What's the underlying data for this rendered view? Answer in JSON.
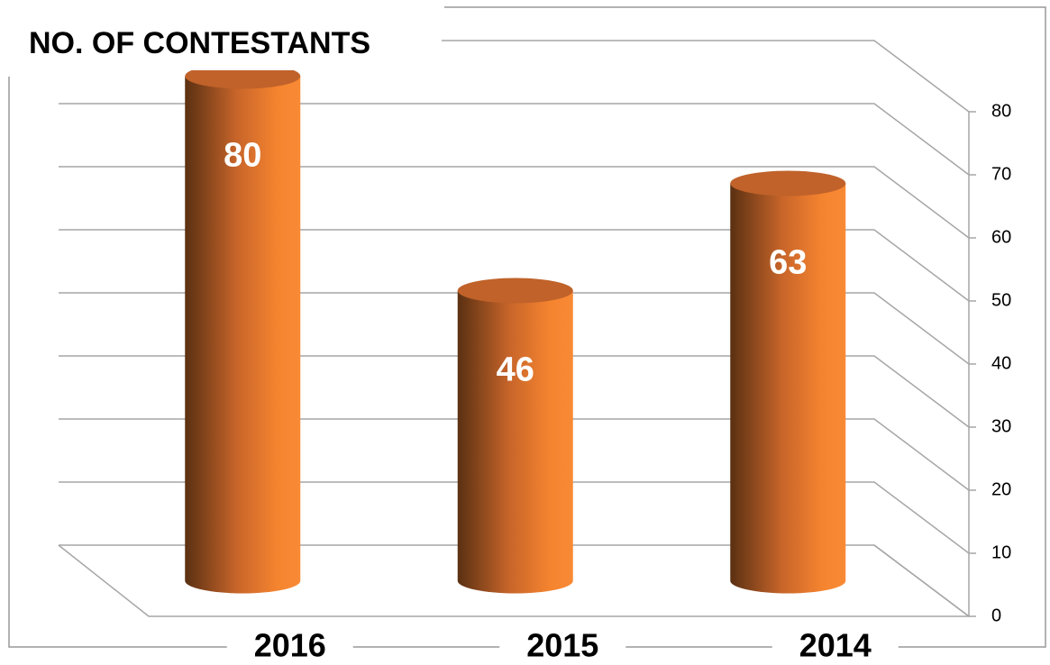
{
  "chart_data": {
    "type": "bar",
    "title": "NO. OF CONTESTANTS",
    "categories": [
      "2016",
      "2015",
      "2014"
    ],
    "values": [
      80,
      46,
      63
    ],
    "color": "#f5842f",
    "ylim": [
      0,
      80
    ],
    "yticks": [
      0,
      10,
      20,
      30,
      40,
      50,
      60,
      70,
      80
    ],
    "grid": true
  }
}
